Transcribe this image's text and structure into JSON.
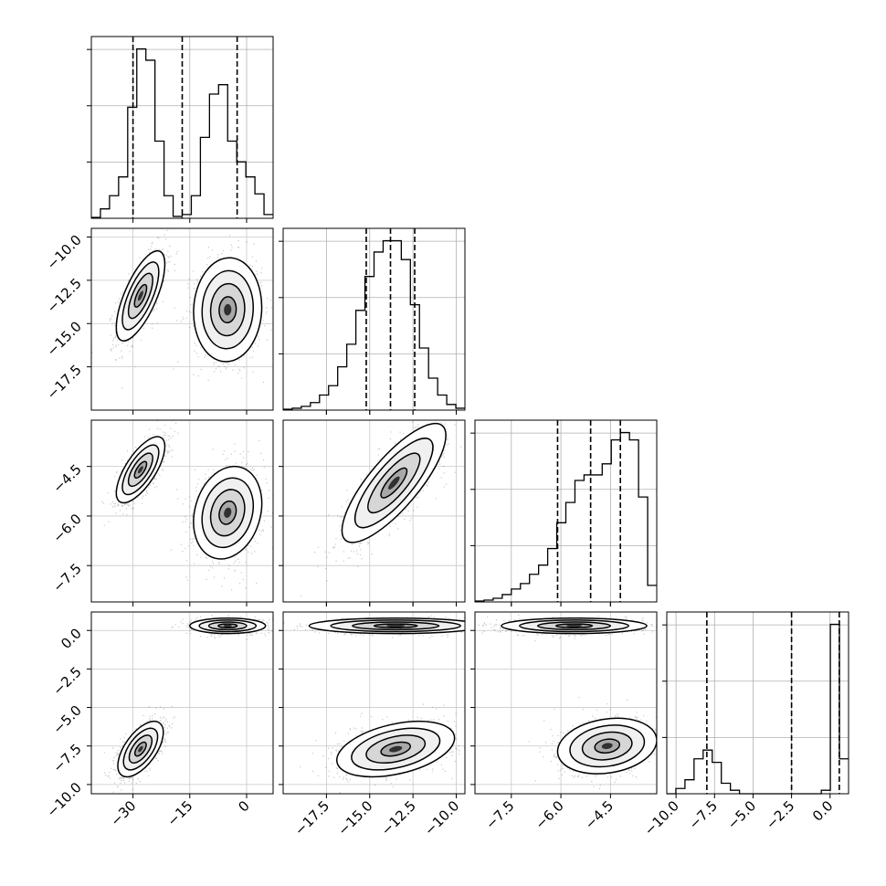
{
  "chart_data": {
    "type": "corner",
    "params": [
      "p0",
      "p1",
      "p2",
      "p3"
    ],
    "ranges": [
      [
        -41,
        7
      ],
      [
        -20,
        -9.5
      ],
      [
        -8.6,
        -3.1
      ],
      [
        -10.6,
        1.2
      ]
    ],
    "quantiles": [
      [
        -30.0,
        -17.0,
        -2.5
      ],
      [
        -15.2,
        -13.8,
        -12.4
      ],
      [
        -6.1,
        -5.1,
        -4.2
      ],
      [
        -8.0,
        -2.5,
        0.6
      ]
    ],
    "axis_ticks": {
      "p0": [
        -30,
        -15,
        0
      ],
      "p1": [
        -17.5,
        -15.0,
        -12.5,
        -10.0
      ],
      "p2": [
        -7.5,
        -6.0,
        -4.5
      ],
      "p3": [
        -10.0,
        -7.5,
        -5.0,
        -2.5,
        0.0
      ]
    },
    "tick_labels": {
      "p0": [
        "−30",
        "−15",
        "0"
      ],
      "p1": [
        "−17.5",
        "−15.0",
        "−12.5",
        "−10.0"
      ],
      "p2": [
        "−7.5",
        "−6.0",
        "−4.5"
      ],
      "p3": [
        "−10.0",
        "−7.5",
        "−5.0",
        "−2.5",
        "0.0"
      ]
    },
    "histograms": {
      "p0": {
        "bins": [
          -41.0,
          -38.6,
          -36.2,
          -33.8,
          -31.4,
          -29.0,
          -26.6,
          -24.2,
          -21.8,
          -19.4,
          -17.0,
          -14.6,
          -12.2,
          -9.8,
          -7.4,
          -5.0,
          -2.6,
          -0.2,
          2.2,
          4.6,
          7.0
        ],
        "counts": [
          0.5,
          5,
          12,
          22,
          59,
          90,
          84,
          41,
          12,
          1,
          2,
          12,
          43,
          66,
          71,
          41,
          30,
          22,
          13,
          2
        ]
      },
      "p1": {
        "bins": [
          -20.0,
          -19.475,
          -18.95,
          -18.425,
          -17.9,
          -17.375,
          -16.85,
          -16.325,
          -15.8,
          -15.275,
          -14.75,
          -14.225,
          -13.7,
          -13.175,
          -12.65,
          -12.125,
          -11.6,
          -11.075,
          -10.55,
          -10.025,
          -9.5
        ],
        "counts": [
          0.5,
          1,
          2,
          4,
          8,
          13,
          23,
          35,
          53,
          71,
          84,
          90,
          90,
          80,
          56,
          33,
          17,
          8,
          3,
          1
        ]
      },
      "p2": {
        "bins": [
          -8.6,
          -8.325,
          -8.05,
          -7.775,
          -7.5,
          -7.225,
          -6.95,
          -6.675,
          -6.4,
          -6.125,
          -5.85,
          -5.575,
          -5.3,
          -5.025,
          -4.75,
          -4.475,
          -4.2,
          -3.925,
          -3.65,
          -3.375,
          -3.1
        ],
        "counts": [
          0.5,
          1,
          2,
          4,
          7,
          10,
          15,
          20,
          29,
          43,
          54,
          66,
          69,
          69,
          75,
          88,
          92,
          88,
          57,
          9
        ]
      },
      "p3": {
        "bins": [
          -10.6,
          -10.01,
          -9.42,
          -8.83,
          -8.24,
          -7.65,
          -7.06,
          -6.47,
          -5.88,
          -5.29,
          -4.7,
          -4.11,
          -3.52,
          -2.93,
          -2.34,
          -1.75,
          -1.16,
          -0.57,
          0.02,
          0.61,
          1.2
        ],
        "counts": [
          0,
          3,
          8,
          20,
          25,
          18,
          6,
          2,
          0,
          0,
          0,
          0,
          0,
          0,
          0,
          0,
          0,
          2,
          97,
          20
        ]
      }
    },
    "modes_2d": [
      {
        "x": "p0",
        "y": "p1",
        "centers": [
          [
            -28,
            -13.4
          ],
          [
            -5,
            -14.2
          ]
        ],
        "spread": [
          [
            3.2,
            1.3,
            0.7
          ],
          [
            4.5,
            1.5,
            0.05
          ]
        ]
      },
      {
        "x": "p0",
        "y": "p2",
        "centers": [
          [
            -28,
            -4.6
          ],
          [
            -5,
            -5.9
          ]
        ],
        "spread": [
          [
            3.2,
            0.5,
            0.7
          ],
          [
            4.5,
            0.7,
            0.2
          ]
        ]
      },
      {
        "x": "p1",
        "y": "p2",
        "centers": [
          [
            -13.6,
            -5.0
          ]
        ],
        "spread": [
          [
            1.5,
            0.9,
            0.8
          ]
        ]
      },
      {
        "x": "p0",
        "y": "p3",
        "centers": [
          [
            -28,
            -7.7
          ],
          [
            -5,
            0.3
          ]
        ],
        "spread": [
          [
            3.0,
            0.9,
            0.6
          ],
          [
            5.0,
            0.25,
            0
          ]
        ]
      },
      {
        "x": "p1",
        "y": "p3",
        "centers": [
          [
            -13.5,
            -7.7
          ],
          [
            -13.5,
            0.3
          ]
        ],
        "spread": [
          [
            1.7,
            0.9,
            0.4
          ],
          [
            2.5,
            0.25,
            0
          ]
        ]
      },
      {
        "x": "p2",
        "y": "p3",
        "centers": [
          [
            -4.6,
            -7.5
          ],
          [
            -5.6,
            0.3
          ]
        ],
        "spread": [
          [
            0.75,
            0.9,
            0.2
          ],
          [
            1.1,
            0.25,
            0
          ]
        ]
      }
    ],
    "grid": true
  }
}
